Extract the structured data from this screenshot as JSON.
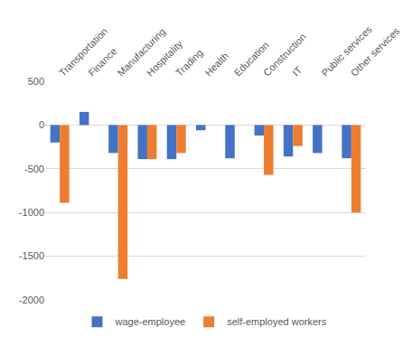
{
  "chart_data": {
    "type": "bar",
    "categories": [
      "Transportation",
      "Finance",
      "Manufacturing",
      "Hospitality",
      "Trading",
      "Health",
      "Education",
      "Construction",
      "IT",
      "Public services",
      "Other services"
    ],
    "series": [
      {
        "name": "wage-employee",
        "color": "#4472c4",
        "values": [
          -200,
          150,
          -320,
          -390,
          -390,
          -60,
          -380,
          -120,
          -360,
          -320,
          -380
        ]
      },
      {
        "name": "self-employed workers",
        "color": "#ed7d31",
        "values": [
          -890,
          0,
          -1760,
          -390,
          -320,
          0,
          0,
          -570,
          -240,
          0,
          -1000
        ]
      }
    ],
    "ylim": [
      -2000,
      500
    ],
    "yticks": [
      -2000,
      -1500,
      -1000,
      -500,
      0,
      500
    ],
    "grid": true,
    "legend": "bottom"
  }
}
